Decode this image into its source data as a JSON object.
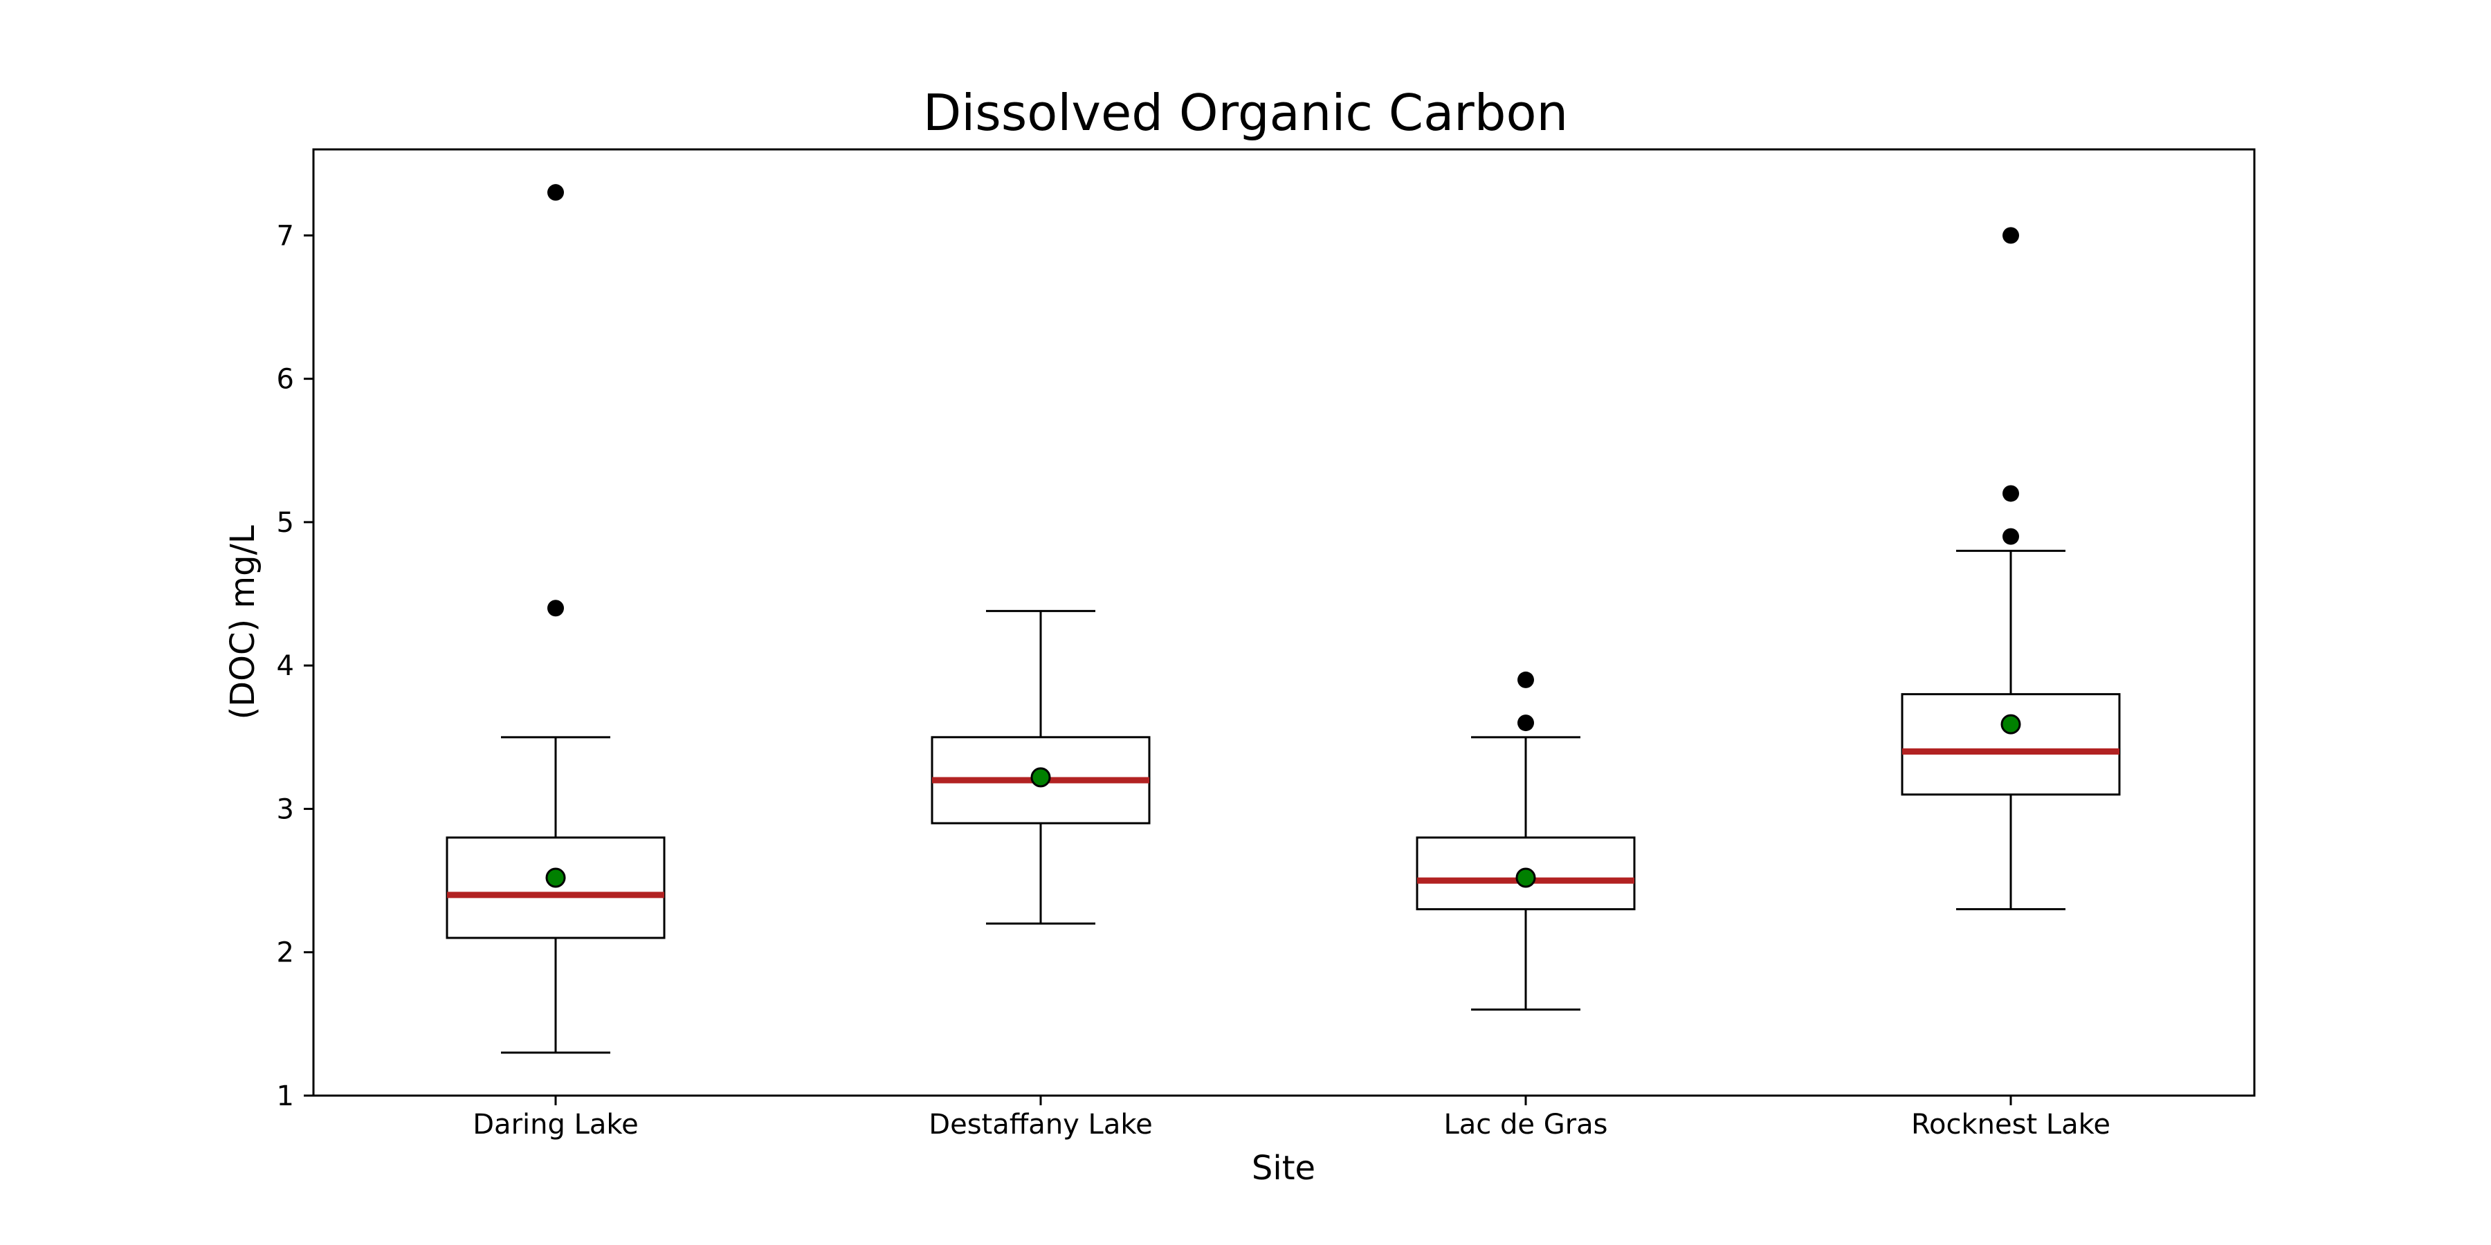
{
  "chart_data": {
    "type": "box",
    "title": "Dissolved Organic Carbon",
    "xlabel": "Site",
    "ylabel": "(DOC) mg/L",
    "ylim": [
      1,
      7.6
    ],
    "yticks": [
      1,
      2,
      3,
      4,
      5,
      6,
      7
    ],
    "grid": false,
    "categories": [
      "Daring Lake",
      "Destaffany Lake",
      "Lac de Gras",
      "Rocknest Lake"
    ],
    "boxes": [
      {
        "whisker_low": 1.3,
        "q1": 2.1,
        "median": 2.4,
        "q3": 2.8,
        "whisker_high": 3.5,
        "mean": 2.52,
        "outliers": [
          4.4,
          7.3
        ]
      },
      {
        "whisker_low": 2.2,
        "q1": 2.9,
        "median": 3.2,
        "q3": 3.5,
        "whisker_high": 4.38,
        "mean": 3.22,
        "outliers": []
      },
      {
        "whisker_low": 1.6,
        "q1": 2.3,
        "median": 2.5,
        "q3": 2.8,
        "whisker_high": 3.5,
        "mean": 2.52,
        "outliers": [
          3.6,
          3.9
        ]
      },
      {
        "whisker_low": 2.3,
        "q1": 3.1,
        "median": 3.4,
        "q3": 3.8,
        "whisker_high": 4.8,
        "mean": 3.59,
        "outliers": [
          4.9,
          5.2,
          7.0
        ]
      }
    ],
    "colors": {
      "median": "#b22222",
      "mean": "#008000",
      "outlier": "#000000",
      "box": "#000000"
    }
  }
}
